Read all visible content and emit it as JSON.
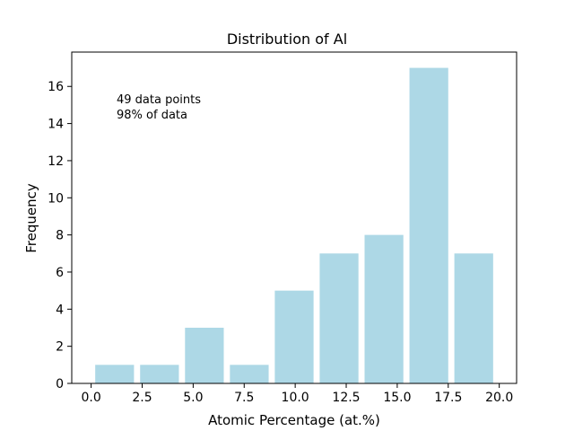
{
  "chart_data": {
    "type": "bar",
    "title": "Distribution of Al",
    "xlabel": "Atomic Percentage (at.%)",
    "ylabel": "Frequency",
    "xlim": [
      -0.95,
      20.85
    ],
    "ylim": [
      0,
      17.85
    ],
    "x_ticks": [
      0.0,
      2.5,
      5.0,
      7.5,
      10.0,
      12.5,
      15.0,
      17.5,
      20.0
    ],
    "x_tick_labels": [
      "0.0",
      "2.5",
      "5.0",
      "7.5",
      "10.0",
      "12.5",
      "15.0",
      "17.5",
      "20.0"
    ],
    "y_ticks": [
      0,
      2,
      4,
      6,
      8,
      10,
      12,
      14,
      16
    ],
    "y_tick_labels": [
      "0",
      "2",
      "4",
      "6",
      "8",
      "10",
      "12",
      "14",
      "16"
    ],
    "bins": [
      {
        "x_start": 0.2,
        "x_end": 2.1,
        "value": 1
      },
      {
        "x_start": 2.4,
        "x_end": 4.3,
        "value": 1
      },
      {
        "x_start": 4.6,
        "x_end": 6.5,
        "value": 3
      },
      {
        "x_start": 6.8,
        "x_end": 8.7,
        "value": 1
      },
      {
        "x_start": 9.0,
        "x_end": 10.9,
        "value": 5
      },
      {
        "x_start": 11.2,
        "x_end": 13.1,
        "value": 7
      },
      {
        "x_start": 13.4,
        "x_end": 15.3,
        "value": 8
      },
      {
        "x_start": 15.6,
        "x_end": 17.5,
        "value": 17
      },
      {
        "x_start": 17.8,
        "x_end": 19.7,
        "value": 7
      }
    ],
    "bar_color": "#add8e6",
    "grid": false,
    "annotations": [
      "49 data points",
      "98% of data"
    ]
  }
}
